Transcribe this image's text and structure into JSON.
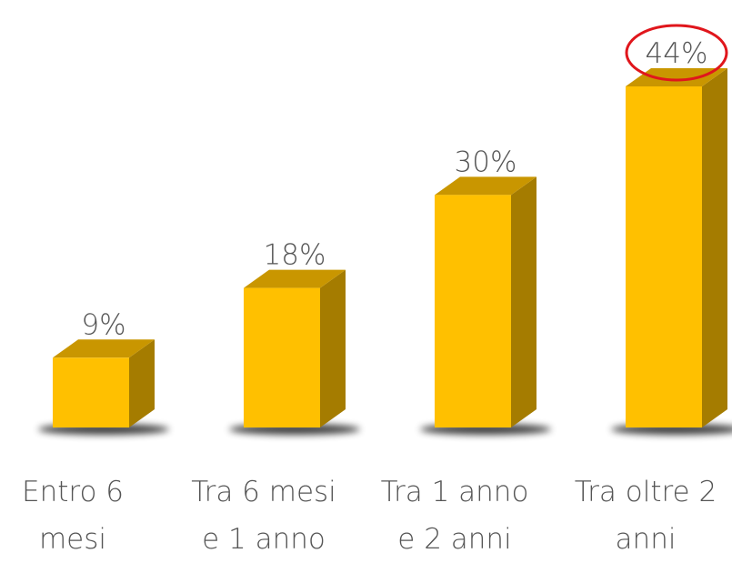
{
  "chart_data": {
    "type": "bar3d",
    "categories": [
      "Entro 6 mesi",
      "Tra 6 mesi e 1 anno",
      "Tra 1 anno e 2 anni",
      "Tra oltre 2 anni"
    ],
    "values": [
      9,
      18,
      30,
      44
    ],
    "value_labels": [
      "9%",
      "18%",
      "30%",
      "44%"
    ],
    "color": "#ffc000"
  }
}
